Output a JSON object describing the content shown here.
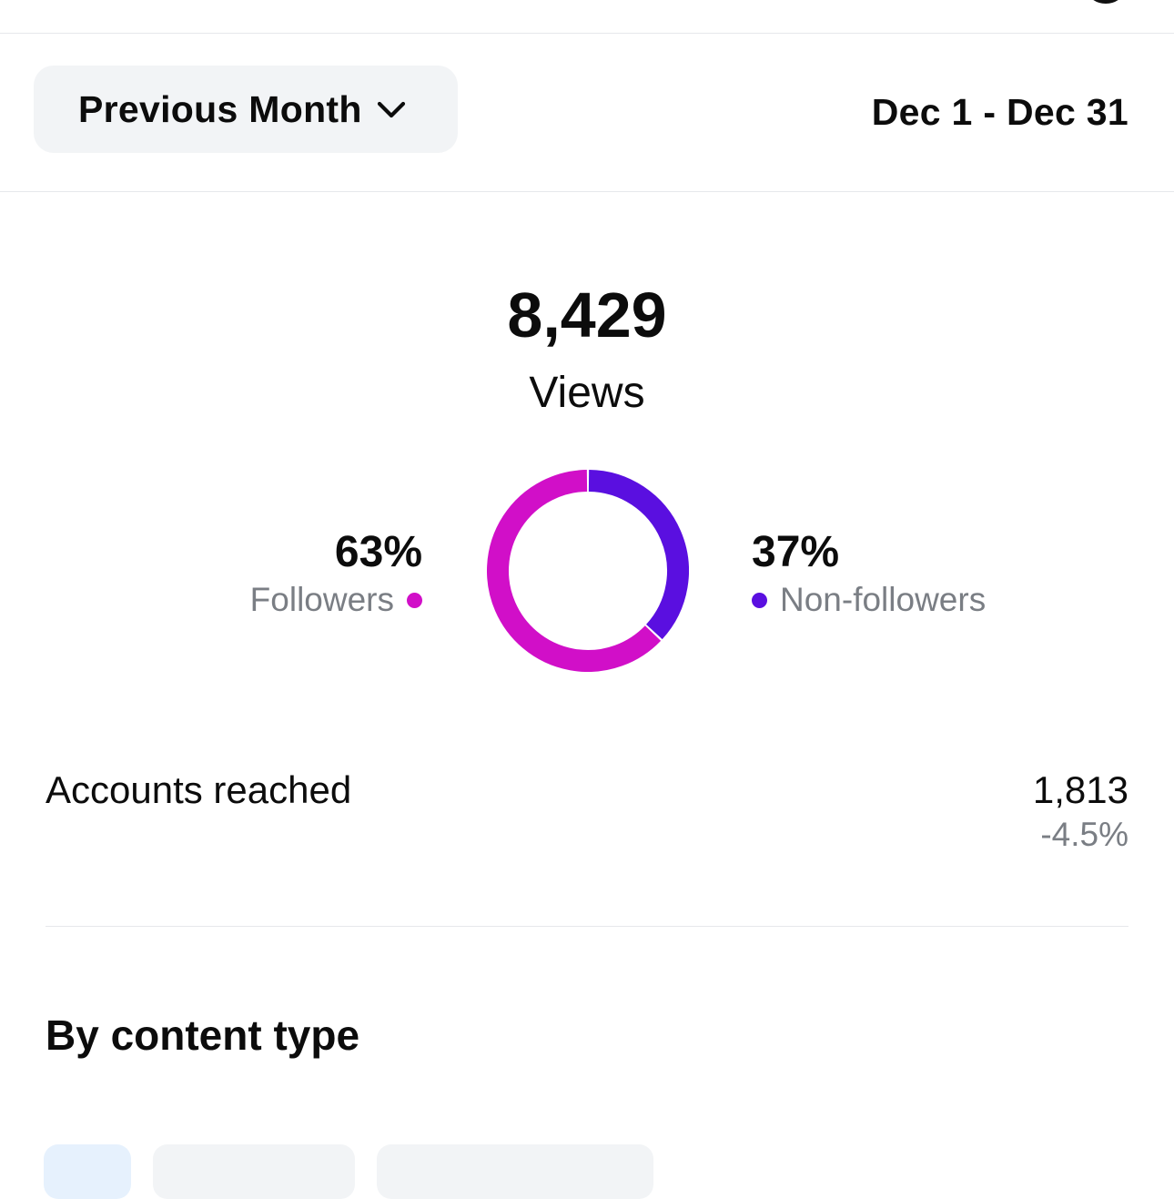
{
  "header": {
    "period_label": "Previous Month",
    "date_range": "Dec 1 - Dec 31"
  },
  "summary": {
    "total": "8,429",
    "total_label": "Views"
  },
  "breakdown": {
    "followers": {
      "percent": "63%",
      "label": "Followers",
      "color": "#d10fc8",
      "value": 63
    },
    "non_followers": {
      "percent": "37%",
      "label": "Non-followers",
      "color": "#5a0fe0",
      "value": 37
    }
  },
  "reached": {
    "label": "Accounts reached",
    "value": "1,813",
    "change": "-4.5%"
  },
  "content_type": {
    "title": "By content type"
  },
  "chart_data": {
    "type": "pie",
    "categories": [
      "Followers",
      "Non-followers"
    ],
    "values": [
      63,
      37
    ],
    "colors": [
      "#d10fc8",
      "#5a0fe0"
    ],
    "title": "",
    "donut": true
  }
}
